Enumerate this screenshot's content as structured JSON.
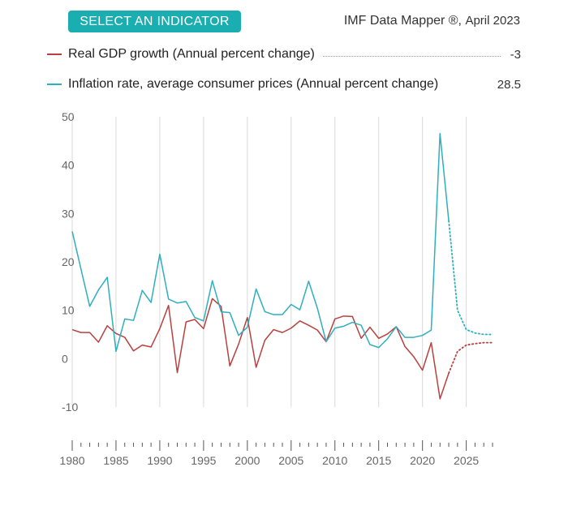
{
  "header": {
    "select_indicator_label": "SELECT AN INDICATOR",
    "brand": "IMF Data Mapper ®,",
    "edition": "April 2023"
  },
  "legend": [
    {
      "label": "Real GDP growth (Annual percent change)",
      "value": "-3",
      "color": "#b8413e"
    },
    {
      "label": "Inflation rate, average consumer prices (Annual percent change)",
      "value": "28.5",
      "color": "#2fafbd"
    }
  ],
  "chart_data": {
    "type": "line",
    "x": [
      1980,
      1981,
      1982,
      1983,
      1984,
      1985,
      1986,
      1987,
      1988,
      1989,
      1990,
      1991,
      1992,
      1993,
      1994,
      1995,
      1996,
      1997,
      1998,
      1999,
      2000,
      2001,
      2002,
      2003,
      2004,
      2005,
      2006,
      2007,
      2008,
      2009,
      2010,
      2011,
      2012,
      2013,
      2014,
      2015,
      2016,
      2017,
      2018,
      2019,
      2020,
      2021,
      2022,
      2023,
      2024,
      2025,
      2026,
      2027,
      2028
    ],
    "projection_start": 2023,
    "series": [
      {
        "name": "Real GDP growth (Annual percent change)",
        "color": "#b8413e",
        "values": [
          6.0,
          5.4,
          5.4,
          3.4,
          6.8,
          5.2,
          4.4,
          1.6,
          2.8,
          2.4,
          6.2,
          11.0,
          -2.9,
          7.6,
          8.1,
          6.2,
          12.4,
          10.8,
          -1.5,
          3.0,
          8.5,
          -1.8,
          3.8,
          6.0,
          5.4,
          6.3,
          7.8,
          6.9,
          5.9,
          3.5,
          8.2,
          8.8,
          8.7,
          4.2,
          6.5,
          4.2,
          5.1,
          6.6,
          2.5,
          0.4,
          -2.4,
          3.3,
          -8.3,
          -3.0,
          1.5,
          2.8,
          3.1,
          3.3,
          3.3
        ]
      },
      {
        "name": "Inflation rate, average consumer prices (Annual percent change)",
        "color": "#2fafbd",
        "values": [
          26.3,
          18.5,
          10.8,
          14.2,
          16.8,
          1.5,
          8.2,
          7.9,
          14.1,
          11.6,
          21.6,
          12.3,
          11.5,
          11.8,
          8.5,
          7.8,
          16.1,
          9.7,
          9.5,
          4.8,
          6.5,
          14.4,
          9.7,
          9.1,
          9.1,
          11.2,
          10.1,
          16.0,
          10.4,
          3.5,
          6.3,
          6.7,
          7.5,
          6.9,
          2.9,
          2.3,
          4.1,
          6.6,
          4.4,
          4.4,
          4.8,
          5.9,
          46.5,
          28.5,
          10.0,
          6.0,
          5.3,
          5.0,
          5.0
        ]
      }
    ],
    "ylim": [
      -10,
      50
    ],
    "yticks": [
      -10,
      0,
      10,
      20,
      30,
      40,
      50
    ],
    "xticks": [
      1980,
      1985,
      1990,
      1995,
      2000,
      2005,
      2010,
      2015,
      2020,
      2025
    ],
    "xlim": [
      1980,
      2028
    ],
    "grid": "vertical"
  }
}
